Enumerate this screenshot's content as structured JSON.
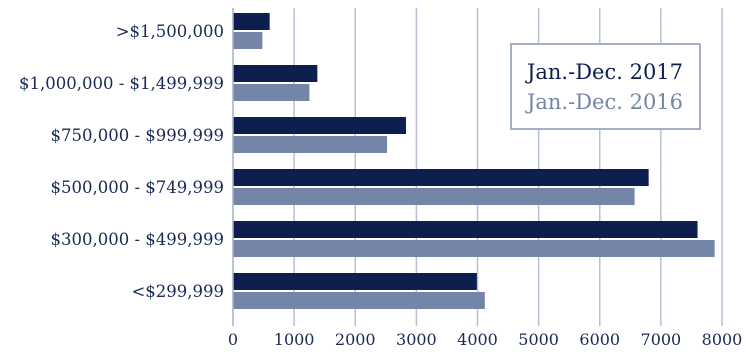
{
  "chart_data": {
    "type": "bar",
    "orientation": "horizontal",
    "categories": [
      ">$1,500,000",
      "$1,000,000 - $1,499,999",
      "$750,000 - $999,999",
      "$500,000 - $749,999",
      "$300,000 - $499,999",
      "<$299,999"
    ],
    "series": [
      {
        "name": "Jan.-Dec. 2017",
        "color": "#0d1f4f",
        "values": [
          600,
          1380,
          2830,
          6800,
          7600,
          3990
        ]
      },
      {
        "name": "Jan.-Dec. 2016",
        "color": "#7585a8",
        "values": [
          480,
          1250,
          2520,
          6570,
          7880,
          4120
        ]
      }
    ],
    "xlim": [
      0,
      8000
    ],
    "xticks": [
      "0",
      "1000",
      "2000",
      "3000",
      "4000",
      "5000",
      "6000",
      "7000",
      "8000"
    ],
    "grid": "vertical",
    "legend_position": "top-right",
    "title": "",
    "xlabel": "",
    "ylabel": ""
  }
}
